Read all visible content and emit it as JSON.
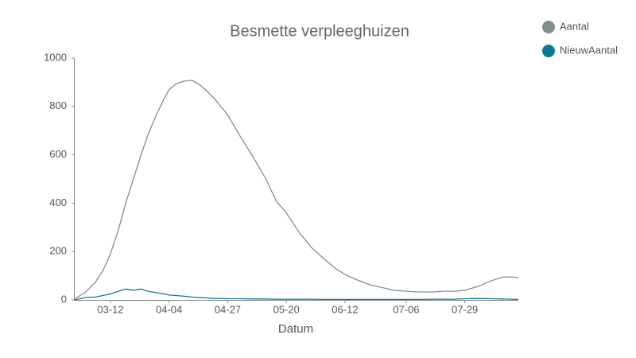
{
  "chart_data": {
    "type": "line",
    "title": "Besmette verpleeghuizen",
    "x_label": "Datum",
    "x": [
      "02-27",
      "03-02",
      "03-06",
      "03-09",
      "03-12",
      "03-15",
      "03-18",
      "03-21",
      "03-24",
      "03-27",
      "03-30",
      "04-02",
      "04-04",
      "04-07",
      "04-10",
      "04-13",
      "04-16",
      "04-19",
      "04-22",
      "04-27",
      "05-02",
      "05-07",
      "05-12",
      "05-16",
      "05-20",
      "05-25",
      "05-30",
      "06-04",
      "06-08",
      "06-12",
      "06-17",
      "06-22",
      "06-27",
      "07-01",
      "07-06",
      "07-11",
      "07-16",
      "07-21",
      "07-25",
      "07-29",
      "08-03",
      "08-08",
      "08-13",
      "08-16",
      "08-19"
    ],
    "series": [
      {
        "name": "Aantal",
        "color": "#7f8f8a",
        "values": [
          5,
          30,
          72,
          120,
          190,
          285,
          400,
          500,
          600,
          690,
          765,
          830,
          870,
          895,
          905,
          908,
          890,
          862,
          830,
          765,
          675,
          590,
          500,
          410,
          360,
          280,
          215,
          168,
          132,
          105,
          82,
          62,
          50,
          40,
          36,
          33,
          33,
          36,
          36,
          40,
          55,
          78,
          95,
          95,
          92
        ]
      },
      {
        "name": "NieuwAantal",
        "color": "#0b7a93",
        "values": [
          0,
          10,
          12,
          18,
          25,
          35,
          45,
          40,
          45,
          35,
          30,
          25,
          20,
          18,
          15,
          12,
          10,
          8,
          6,
          5,
          5,
          4,
          4,
          3,
          3,
          3,
          3,
          2,
          2,
          2,
          2,
          2,
          2,
          2,
          2,
          2,
          3,
          3,
          3,
          5,
          6,
          5,
          4,
          3,
          2
        ]
      }
    ],
    "xticks": [
      "03-12",
      "04-04",
      "04-27",
      "05-20",
      "06-12",
      "07-06",
      "07-29"
    ],
    "ylim": [
      0,
      1000
    ],
    "yticks": [
      0,
      200,
      400,
      600,
      800,
      1000
    ],
    "legend": "top-right"
  }
}
